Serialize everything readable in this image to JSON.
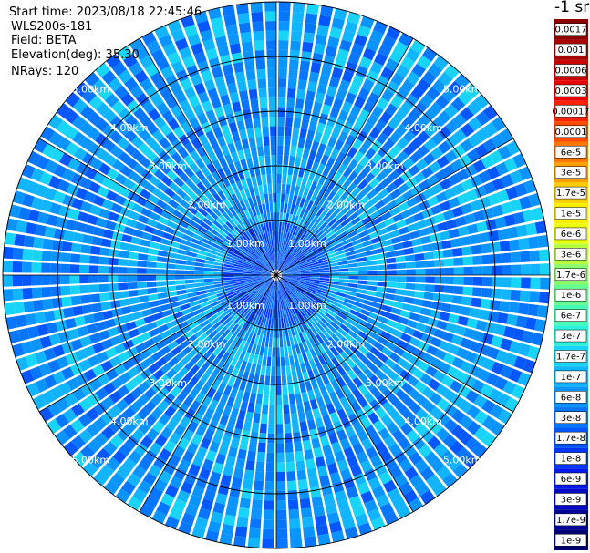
{
  "info": {
    "start_time": "Start time: 2023/08/18 22:45:46",
    "instrument": "WLS200s-181",
    "field": "Field: BETA",
    "elevation": "Elevation(deg): 35.30",
    "nrays": "NRays: 120"
  },
  "colorbar": {
    "unit_label": "-1 sr",
    "levels": [
      {
        "label": "0.0017",
        "color": "#8b0000"
      },
      {
        "label": "0.001",
        "color": "#a80000"
      },
      {
        "label": "0.0006",
        "color": "#c80000"
      },
      {
        "label": "0.0003",
        "color": "#e80000"
      },
      {
        "label": "0.00017",
        "color": "#ff2000"
      },
      {
        "label": "0.0001",
        "color": "#ff4a00"
      },
      {
        "label": "6e-5",
        "color": "#ff7600"
      },
      {
        "label": "3e-5",
        "color": "#ffa000"
      },
      {
        "label": "1.7e-5",
        "color": "#ffcc00"
      },
      {
        "label": "1e-5",
        "color": "#ffee00"
      },
      {
        "label": "6e-6",
        "color": "#ecff10"
      },
      {
        "label": "3e-6",
        "color": "#b8ff40"
      },
      {
        "label": "1.7e-6",
        "color": "#8cff6c"
      },
      {
        "label": "1e-6",
        "color": "#66ff90"
      },
      {
        "label": "6e-7",
        "color": "#44ffb4"
      },
      {
        "label": "3e-7",
        "color": "#2af2dc"
      },
      {
        "label": "1.7e-7",
        "color": "#18d4f6"
      },
      {
        "label": "1e-7",
        "color": "#10b4ff"
      },
      {
        "label": "6e-8",
        "color": "#0a94ff"
      },
      {
        "label": "3e-8",
        "color": "#0676ff"
      },
      {
        "label": "1.7e-8",
        "color": "#0456ff"
      },
      {
        "label": "1e-8",
        "color": "#0036ff"
      },
      {
        "label": "6e-9",
        "color": "#0018ec"
      },
      {
        "label": "3e-9",
        "color": "#0008c4"
      },
      {
        "label": "1.7e-9",
        "color": "#00049a"
      },
      {
        "label": "1e-9",
        "color": "#000072"
      }
    ]
  },
  "chart_data": {
    "type": "heatmap",
    "projection": "polar",
    "rays": 120,
    "max_range_km": 5.0,
    "range_ring_labels": [
      "1.00km",
      "2.00km",
      "3.00km",
      "4.00km",
      "5.00km"
    ],
    "range_rings_km": [
      1,
      2,
      3,
      4,
      5
    ],
    "radial_spokes_deg": [
      0,
      30,
      60,
      90,
      120,
      150,
      180,
      210,
      240,
      270,
      300,
      330
    ],
    "dominant_values": [
      "6e-8",
      "3e-8",
      "1e-7"
    ],
    "inner_values": [
      "1e-8",
      "1.7e-8"
    ],
    "grid": true
  }
}
